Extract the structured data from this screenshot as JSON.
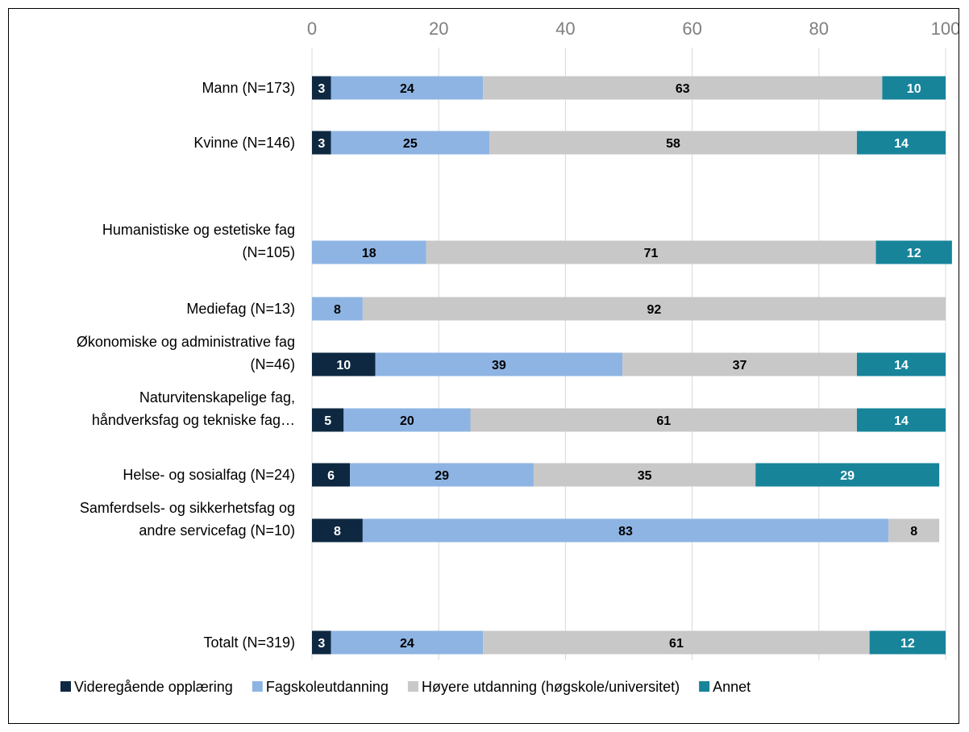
{
  "chart_data": {
    "type": "bar",
    "orientation": "horizontal",
    "stacked": true,
    "xlim": [
      0,
      100
    ],
    "xticks": [
      "0",
      "20",
      "40",
      "60",
      "80",
      "100"
    ],
    "grid": true,
    "legend_position": "bottom",
    "categories": [
      [
        "Mann (N=173)"
      ],
      [
        "Kvinne (N=146)"
      ],
      [
        "Humanistiske og estetiske fag",
        "(N=105)"
      ],
      [
        "Mediefag (N=13)"
      ],
      [
        "Økonomiske og administrative fag",
        "(N=46)"
      ],
      [
        "Naturvitenskapelige fag,",
        "håndverksfag og tekniske fag…"
      ],
      [
        "Helse- og sosialfag (N=24)"
      ],
      [
        "Samferdsels- og sikkerhetsfag og",
        "andre servicefag (N=10)"
      ],
      [
        "Totalt (N=319)"
      ]
    ],
    "series": [
      {
        "name": "Videregående opplæring",
        "color": "#0e2841",
        "label_color": "#ffffff",
        "values": [
          3,
          3,
          0,
          0,
          10,
          5,
          6,
          8,
          3
        ]
      },
      {
        "name": "Fagskoleutdanning",
        "color": "#8eb4e3",
        "label_color": "#000000",
        "values": [
          24,
          25,
          18,
          8,
          39,
          20,
          29,
          83,
          24
        ]
      },
      {
        "name": "Høyere utdanning (høgskole/universitet)",
        "color": "#c8c8c8",
        "label_color": "#000000",
        "values": [
          63,
          58,
          71,
          92,
          37,
          61,
          35,
          8,
          61
        ]
      },
      {
        "name": "Annet",
        "color": "#17849a",
        "label_color": "#ffffff",
        "values": [
          10,
          14,
          12,
          0,
          14,
          14,
          29,
          0,
          12
        ]
      }
    ]
  }
}
